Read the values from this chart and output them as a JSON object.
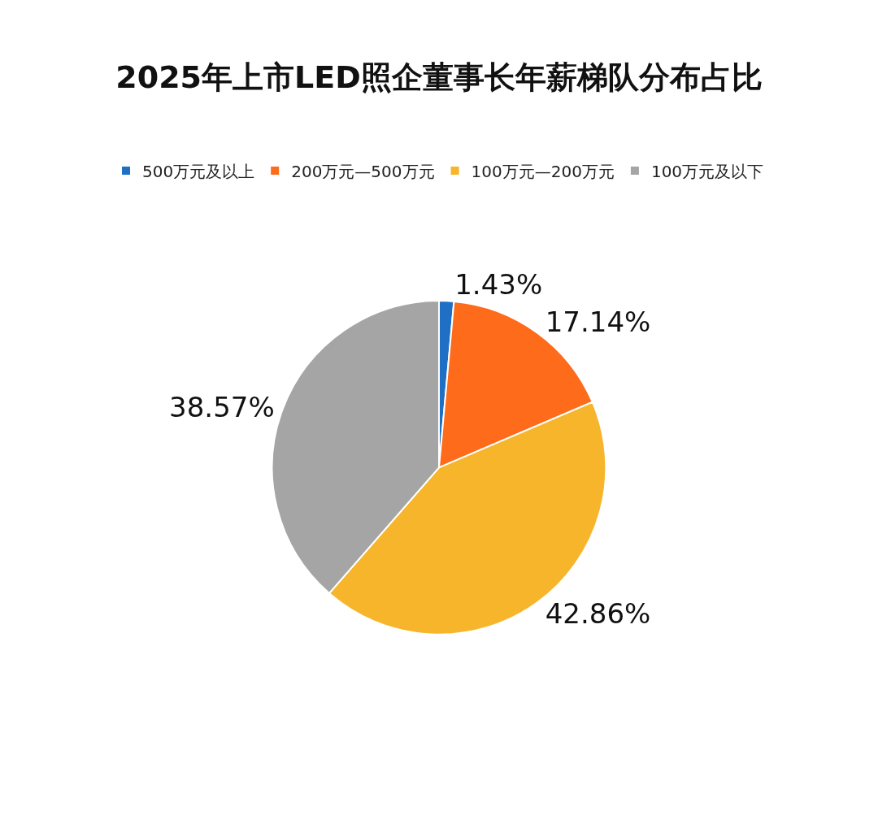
{
  "chart_data": {
    "type": "pie",
    "title": "2025年上市LED照企董事长年薪梯队分布占比",
    "categories": [
      "500万元及以上",
      "200万元—500万元",
      "100万元—200万元",
      "100万元及以下"
    ],
    "values": [
      1.43,
      17.14,
      42.86,
      38.57
    ],
    "value_labels": [
      "1.43%",
      "17.14%",
      "42.86%",
      "38.57%"
    ],
    "colors": [
      "#1f6fc5",
      "#fd6b1b",
      "#f7b52c",
      "#a5a5a5"
    ],
    "legend": "top"
  }
}
